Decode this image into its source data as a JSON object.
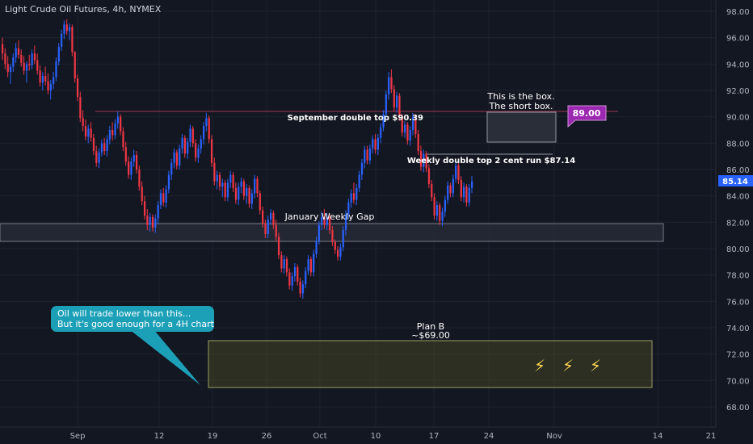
{
  "chart_data": {
    "type": "candlestick",
    "title": "Light Crude Oil Futures, 4h, NYMEX",
    "ylim": [
      67,
      99
    ],
    "y_ticks": [
      "98.00",
      "96.00",
      "94.00",
      "92.00",
      "90.00",
      "88.00",
      "86.00",
      "84.00",
      "82.00",
      "80.00",
      "78.00",
      "76.00",
      "74.00",
      "72.00",
      "70.00",
      "68.00"
    ],
    "x_ticks": [
      "Sep",
      "12",
      "19",
      "26",
      "Oct",
      "10",
      "17",
      "24",
      "Nov",
      "14",
      "21"
    ],
    "last_price": "85.14",
    "colors": {
      "up": "#2962ff",
      "down": "#f23645",
      "background": "#131722",
      "grid": "#1e222d"
    },
    "candles": [
      [
        95.5,
        96.0,
        94.3,
        94.8
      ],
      [
        94.8,
        95.2,
        93.6,
        94.0
      ],
      [
        94.0,
        94.6,
        93.0,
        93.4
      ],
      [
        93.4,
        94.0,
        92.5,
        93.8
      ],
      [
        93.8,
        94.8,
        93.4,
        94.5
      ],
      [
        94.5,
        95.6,
        94.1,
        95.2
      ],
      [
        95.2,
        95.8,
        94.4,
        94.7
      ],
      [
        94.7,
        95.1,
        93.8,
        94.1
      ],
      [
        94.1,
        94.6,
        93.2,
        93.5
      ],
      [
        93.5,
        94.2,
        92.6,
        94.0
      ],
      [
        94.0,
        94.7,
        93.5,
        93.9
      ],
      [
        93.9,
        95.1,
        93.6,
        94.8
      ],
      [
        94.8,
        95.4,
        94.0,
        94.3
      ],
      [
        94.3,
        94.8,
        93.2,
        93.5
      ],
      [
        93.5,
        93.9,
        92.3,
        92.6
      ],
      [
        92.6,
        93.4,
        92.0,
        93.1
      ],
      [
        93.1,
        93.8,
        92.4,
        92.7
      ],
      [
        92.7,
        93.3,
        91.7,
        92.0
      ],
      [
        92.0,
        92.8,
        91.3,
        92.5
      ],
      [
        92.5,
        93.4,
        92.1,
        93.0
      ],
      [
        93.0,
        94.5,
        92.7,
        94.2
      ],
      [
        94.2,
        95.6,
        93.9,
        95.3
      ],
      [
        95.3,
        96.6,
        95.0,
        96.3
      ],
      [
        96.3,
        97.3,
        95.9,
        97.0
      ],
      [
        97.0,
        97.4,
        96.2,
        96.5
      ],
      [
        96.5,
        97.1,
        95.8,
        96.8
      ],
      [
        96.8,
        97.0,
        94.6,
        94.9
      ],
      [
        94.9,
        95.0,
        92.6,
        92.9
      ],
      [
        92.9,
        93.2,
        91.2,
        91.5
      ],
      [
        91.5,
        91.9,
        89.6,
        89.9
      ],
      [
        89.9,
        90.5,
        88.9,
        89.3
      ],
      [
        89.3,
        89.8,
        88.2,
        88.5
      ],
      [
        88.5,
        89.4,
        88.0,
        89.1
      ],
      [
        89.1,
        89.6,
        88.1,
        88.4
      ],
      [
        88.4,
        88.7,
        87.1,
        87.4
      ],
      [
        87.4,
        87.8,
        86.2,
        86.5
      ],
      [
        86.5,
        87.6,
        86.1,
        87.3
      ],
      [
        87.3,
        88.3,
        87.0,
        88.0
      ],
      [
        88.0,
        88.4,
        87.1,
        87.4
      ],
      [
        87.4,
        88.6,
        87.0,
        88.3
      ],
      [
        88.3,
        89.3,
        87.9,
        89.0
      ],
      [
        89.0,
        89.6,
        88.2,
        88.6
      ],
      [
        88.6,
        89.8,
        88.3,
        89.5
      ],
      [
        89.5,
        90.4,
        89.1,
        90.0
      ],
      [
        90.0,
        90.2,
        88.6,
        88.9
      ],
      [
        88.9,
        89.2,
        87.4,
        87.7
      ],
      [
        87.7,
        88.1,
        86.3,
        86.6
      ],
      [
        86.6,
        87.0,
        85.3,
        85.6
      ],
      [
        85.6,
        86.9,
        85.2,
        86.6
      ],
      [
        86.6,
        87.5,
        86.2,
        87.1
      ],
      [
        87.1,
        87.4,
        85.7,
        86.0
      ],
      [
        86.0,
        86.3,
        84.4,
        84.7
      ],
      [
        84.7,
        85.1,
        83.3,
        83.6
      ],
      [
        83.6,
        84.0,
        82.2,
        82.5
      ],
      [
        82.5,
        83.0,
        81.4,
        81.8
      ],
      [
        81.8,
        82.7,
        81.3,
        82.4
      ],
      [
        82.4,
        82.6,
        81.3,
        81.6
      ],
      [
        81.6,
        82.6,
        81.2,
        82.3
      ],
      [
        82.3,
        83.6,
        81.9,
        83.3
      ],
      [
        83.3,
        84.5,
        83.0,
        84.2
      ],
      [
        84.2,
        84.6,
        83.2,
        83.5
      ],
      [
        83.5,
        84.8,
        83.1,
        84.5
      ],
      [
        84.5,
        85.9,
        84.2,
        85.6
      ],
      [
        85.6,
        86.8,
        85.2,
        86.5
      ],
      [
        86.5,
        87.6,
        86.1,
        87.3
      ],
      [
        87.3,
        87.5,
        86.0,
        86.3
      ],
      [
        86.3,
        87.9,
        86.0,
        87.6
      ],
      [
        87.6,
        88.7,
        87.2,
        88.4
      ],
      [
        88.4,
        88.6,
        86.9,
        87.2
      ],
      [
        87.2,
        88.4,
        86.8,
        88.1
      ],
      [
        88.1,
        89.4,
        87.7,
        89.1
      ],
      [
        89.1,
        89.3,
        87.7,
        88.0
      ],
      [
        88.0,
        88.3,
        86.6,
        86.9
      ],
      [
        86.9,
        87.9,
        86.5,
        87.6
      ],
      [
        87.6,
        88.6,
        87.2,
        88.3
      ],
      [
        88.3,
        89.6,
        87.9,
        89.3
      ],
      [
        89.3,
        90.3,
        88.9,
        89.9
      ],
      [
        89.9,
        90.1,
        88.0,
        88.3
      ],
      [
        88.3,
        88.6,
        86.2,
        86.5
      ],
      [
        86.5,
        86.9,
        84.8,
        85.1
      ],
      [
        85.1,
        85.9,
        84.5,
        85.6
      ],
      [
        85.6,
        85.8,
        84.4,
        84.7
      ],
      [
        84.7,
        85.3,
        83.9,
        85.0
      ],
      [
        85.0,
        85.2,
        83.6,
        83.9
      ],
      [
        83.9,
        85.3,
        83.6,
        85.0
      ],
      [
        85.0,
        85.9,
        84.6,
        85.6
      ],
      [
        85.6,
        85.8,
        84.3,
        84.6
      ],
      [
        84.6,
        85.0,
        83.4,
        83.7
      ],
      [
        83.7,
        85.0,
        83.3,
        84.7
      ],
      [
        84.7,
        85.4,
        84.2,
        85.1
      ],
      [
        85.1,
        85.3,
        83.7,
        84.0
      ],
      [
        84.0,
        84.9,
        83.4,
        84.6
      ],
      [
        84.6,
        84.8,
        83.1,
        83.4
      ],
      [
        83.4,
        84.5,
        83.0,
        84.2
      ],
      [
        84.2,
        85.6,
        83.8,
        85.3
      ],
      [
        85.3,
        85.5,
        83.9,
        84.2
      ],
      [
        84.2,
        84.4,
        82.6,
        82.9
      ],
      [
        82.9,
        83.2,
        81.6,
        81.9
      ],
      [
        81.9,
        82.2,
        80.8,
        81.1
      ],
      [
        81.1,
        82.5,
        80.8,
        82.2
      ],
      [
        82.2,
        83.0,
        81.8,
        82.7
      ],
      [
        82.7,
        82.9,
        81.5,
        81.8
      ],
      [
        81.8,
        82.2,
        80.6,
        80.9
      ],
      [
        80.9,
        81.2,
        79.2,
        79.5
      ],
      [
        79.5,
        79.8,
        78.2,
        78.5
      ],
      [
        78.5,
        79.5,
        78.1,
        79.2
      ],
      [
        79.2,
        79.4,
        77.9,
        78.2
      ],
      [
        78.2,
        78.5,
        76.9,
        77.2
      ],
      [
        77.2,
        78.2,
        76.8,
        77.9
      ],
      [
        77.9,
        78.9,
        77.5,
        78.6
      ],
      [
        78.6,
        78.8,
        77.2,
        77.5
      ],
      [
        77.5,
        77.8,
        76.3,
        76.6
      ],
      [
        76.6,
        77.6,
        76.2,
        77.3
      ],
      [
        77.3,
        78.6,
        77.0,
        78.3
      ],
      [
        78.3,
        79.5,
        78.0,
        79.2
      ],
      [
        79.2,
        79.4,
        77.9,
        78.2
      ],
      [
        78.2,
        79.9,
        77.9,
        79.6
      ],
      [
        79.6,
        80.9,
        79.3,
        80.6
      ],
      [
        80.6,
        82.1,
        80.3,
        81.8
      ],
      [
        81.8,
        82.8,
        81.4,
        82.4
      ],
      [
        82.4,
        83.0,
        81.5,
        81.8
      ],
      [
        81.8,
        82.7,
        81.4,
        82.4
      ],
      [
        82.4,
        82.6,
        81.1,
        81.4
      ],
      [
        81.4,
        81.7,
        80.2,
        80.5
      ],
      [
        80.5,
        80.7,
        79.6,
        79.9
      ],
      [
        79.9,
        80.2,
        79.1,
        79.4
      ],
      [
        79.4,
        80.4,
        79.1,
        80.1
      ],
      [
        80.1,
        81.7,
        79.8,
        81.4
      ],
      [
        81.4,
        82.9,
        81.0,
        82.6
      ],
      [
        82.6,
        83.8,
        82.2,
        83.5
      ],
      [
        83.5,
        84.5,
        83.1,
        84.2
      ],
      [
        84.2,
        85.0,
        83.4,
        83.7
      ],
      [
        83.7,
        84.9,
        83.3,
        84.6
      ],
      [
        84.6,
        85.9,
        84.3,
        85.6
      ],
      [
        85.6,
        86.8,
        85.2,
        86.5
      ],
      [
        86.5,
        87.8,
        86.1,
        87.5
      ],
      [
        87.5,
        87.8,
        86.4,
        86.7
      ],
      [
        86.7,
        87.9,
        86.4,
        87.6
      ],
      [
        87.6,
        88.6,
        87.2,
        88.3
      ],
      [
        88.3,
        88.7,
        87.2,
        87.5
      ],
      [
        87.5,
        88.7,
        87.1,
        88.4
      ],
      [
        88.4,
        89.5,
        88.0,
        89.2
      ],
      [
        89.2,
        90.5,
        88.9,
        90.2
      ],
      [
        90.2,
        92.0,
        89.9,
        91.7
      ],
      [
        91.7,
        93.4,
        91.3,
        93.0
      ],
      [
        93.0,
        93.6,
        91.8,
        92.1
      ],
      [
        92.1,
        92.4,
        90.4,
        90.7
      ],
      [
        90.7,
        91.9,
        90.3,
        91.6
      ],
      [
        91.6,
        91.8,
        89.7,
        90.0
      ],
      [
        90.0,
        90.2,
        88.5,
        88.8
      ],
      [
        88.8,
        89.7,
        88.4,
        89.4
      ],
      [
        89.4,
        89.6,
        87.9,
        88.2
      ],
      [
        88.2,
        89.3,
        87.8,
        89.0
      ],
      [
        89.0,
        90.3,
        88.6,
        90.0
      ],
      [
        90.0,
        90.2,
        88.4,
        88.7
      ],
      [
        88.7,
        89.0,
        87.1,
        87.4
      ],
      [
        87.4,
        87.8,
        85.9,
        86.2
      ],
      [
        86.2,
        87.5,
        85.8,
        87.2
      ],
      [
        87.2,
        87.4,
        85.8,
        86.1
      ],
      [
        86.1,
        86.4,
        84.6,
        84.9
      ],
      [
        84.9,
        85.2,
        83.6,
        83.9
      ],
      [
        83.9,
        84.2,
        82.2,
        82.5
      ],
      [
        82.5,
        83.6,
        82.1,
        83.3
      ],
      [
        83.3,
        83.5,
        81.8,
        82.1
      ],
      [
        82.1,
        83.1,
        81.7,
        82.8
      ],
      [
        82.8,
        84.0,
        82.4,
        83.7
      ],
      [
        83.7,
        85.1,
        83.4,
        84.8
      ],
      [
        84.8,
        85.0,
        83.9,
        84.2
      ],
      [
        84.2,
        85.6,
        83.9,
        85.3
      ],
      [
        85.3,
        86.6,
        85.0,
        86.3
      ],
      [
        86.3,
        86.6,
        84.9,
        85.2
      ],
      [
        85.2,
        85.5,
        83.6,
        83.9
      ],
      [
        83.9,
        85.0,
        83.5,
        84.7
      ],
      [
        84.7,
        84.9,
        83.2,
        83.5
      ],
      [
        83.5,
        84.9,
        83.2,
        84.6
      ],
      [
        84.6,
        85.5,
        84.2,
        85.1
      ]
    ]
  },
  "annotations": {
    "sept_double_top": "September double top $90.39",
    "weekly_double_top": "Weekly double top 2 cent run $87.14",
    "january_gap": "January Weekly Gap",
    "short_box_line1": "This is the box.",
    "short_box_line2": "The short box.",
    "target_tag": "89.00",
    "plan_b_line1": "Plan B",
    "plan_b_line2": "~$69.00",
    "callout_line1": "Oil will trade lower than this...",
    "callout_line2": "But it's good enough for a 4H chart",
    "lightning_glyph": "⚡"
  }
}
